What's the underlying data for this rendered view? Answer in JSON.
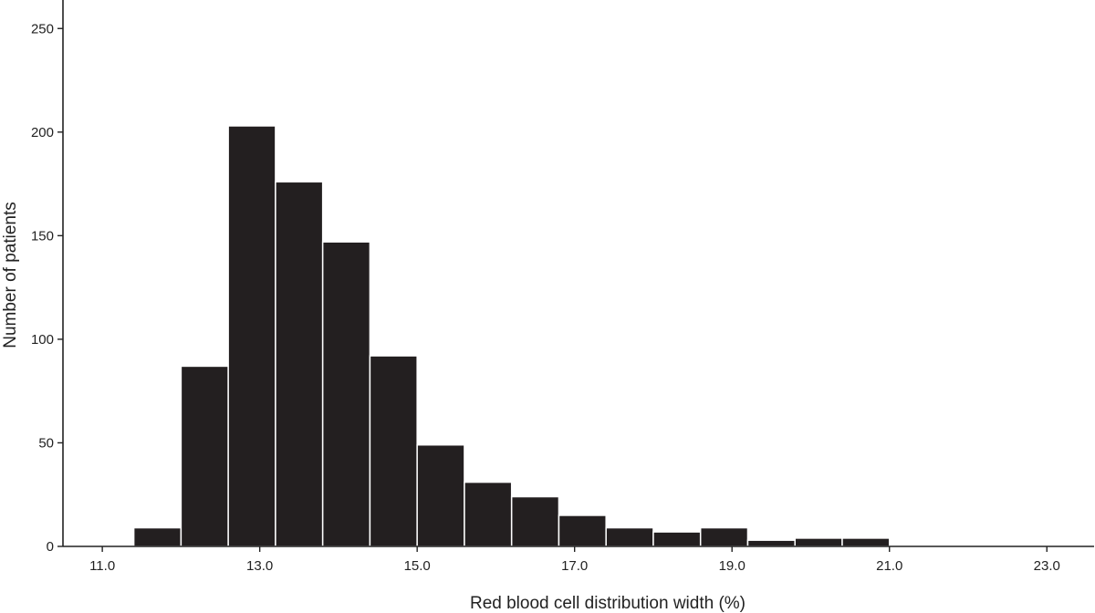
{
  "chart_data": {
    "type": "bar",
    "title": "",
    "xlabel": "Red blood cell distribution width (%)",
    "ylabel": "Number of patients",
    "xlim": [
      10.5,
      23.6
    ],
    "ylim": [
      0,
      262
    ],
    "bin_width": 0.6,
    "x_ticks": [
      "11.0",
      "13.0",
      "15.0",
      "17.0",
      "19.0",
      "21.0",
      "23.0"
    ],
    "y_ticks": [
      "0",
      "50",
      "100",
      "150",
      "200",
      "250"
    ],
    "bins": [
      {
        "start": 11.4,
        "end": 12.0,
        "count": 9
      },
      {
        "start": 12.0,
        "end": 12.6,
        "count": 87
      },
      {
        "start": 12.6,
        "end": 13.2,
        "count": 203
      },
      {
        "start": 13.2,
        "end": 13.8,
        "count": 176
      },
      {
        "start": 13.8,
        "end": 14.4,
        "count": 147
      },
      {
        "start": 14.4,
        "end": 15.0,
        "count": 92
      },
      {
        "start": 15.0,
        "end": 15.6,
        "count": 49
      },
      {
        "start": 15.6,
        "end": 16.2,
        "count": 31
      },
      {
        "start": 16.2,
        "end": 16.8,
        "count": 24
      },
      {
        "start": 16.8,
        "end": 17.4,
        "count": 15
      },
      {
        "start": 17.4,
        "end": 18.0,
        "count": 9
      },
      {
        "start": 18.0,
        "end": 18.6,
        "count": 7
      },
      {
        "start": 18.6,
        "end": 19.2,
        "count": 9
      },
      {
        "start": 19.2,
        "end": 19.8,
        "count": 3
      },
      {
        "start": 19.8,
        "end": 20.4,
        "count": 4
      },
      {
        "start": 20.4,
        "end": 21.0,
        "count": 4
      }
    ],
    "grid": false,
    "legend": "none"
  }
}
